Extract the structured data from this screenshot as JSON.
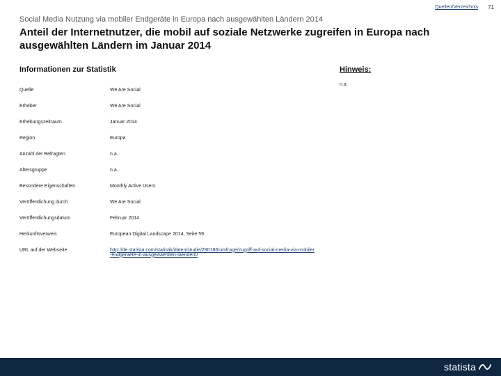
{
  "header": {
    "qv_link": "Quellen/Verzeichnis",
    "page_number": "71"
  },
  "breadcrumb": "Social Media Nutzung via mobiler Endgeräte in Europa nach ausgewählten Ländern 2014",
  "title": "Anteil der Internetnutzer, die mobil auf soziale Netzwerke zugreifen in Europa nach ausgewählten Ländern im Januar 2014",
  "info": {
    "heading": "Informationen zur Statistik",
    "rows": [
      {
        "key": "Quelle",
        "val": "We Are Social"
      },
      {
        "key": "Erheber",
        "val": "We Are Social"
      },
      {
        "key": "Erhebungszeitraum",
        "val": "Januar 2014"
      },
      {
        "key": "Region",
        "val": "Europa"
      },
      {
        "key": "Anzahl der Befragten",
        "val": "n.a."
      },
      {
        "key": "Altersgruppe",
        "val": "n.a."
      },
      {
        "key": "Besondere Eigenschaften",
        "val": "Monthly Active Users"
      },
      {
        "key": "Veröffentlichung durch",
        "val": "We Are Social"
      },
      {
        "key": "Veröffentlichungsdatum",
        "val": "Februar 2014"
      },
      {
        "key": "Herkunftsverweis",
        "val": "European Digital Landscape 2014, Seite 59"
      }
    ],
    "url_row": {
      "key": "URL auf der Webseite",
      "val": "http://de.statista.com/statistik/daten/studie/290186/umfrage/zugriff-auf-social-media-via-mobiler-endgeraete-in-ausgewaehlten-laendern/"
    }
  },
  "hint": {
    "heading": "Hinweis:",
    "text": "n.a."
  },
  "footer": {
    "brand": "statista"
  },
  "colors": {
    "footer_bg": "#0f2741",
    "link": "#1a3e6e"
  }
}
